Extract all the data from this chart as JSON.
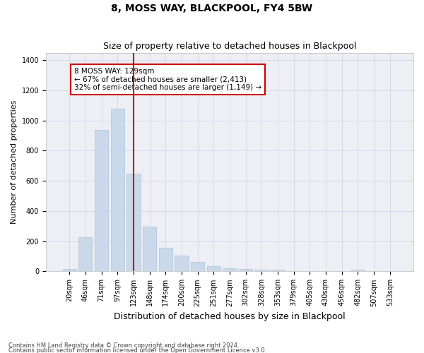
{
  "title": "8, MOSS WAY, BLACKPOOL, FY4 5BW",
  "subtitle": "Size of property relative to detached houses in Blackpool",
  "xlabel": "Distribution of detached houses by size in Blackpool",
  "ylabel": "Number of detached properties",
  "bar_labels": [
    "20sqm",
    "46sqm",
    "71sqm",
    "97sqm",
    "123sqm",
    "148sqm",
    "174sqm",
    "200sqm",
    "225sqm",
    "251sqm",
    "277sqm",
    "302sqm",
    "328sqm",
    "353sqm",
    "379sqm",
    "405sqm",
    "430sqm",
    "456sqm",
    "482sqm",
    "507sqm",
    "533sqm"
  ],
  "bar_values": [
    15,
    225,
    940,
    1080,
    650,
    295,
    155,
    105,
    65,
    35,
    22,
    18,
    13,
    12,
    0,
    0,
    0,
    0,
    13,
    0,
    0
  ],
  "bar_color": "#c9d9ea",
  "bar_edgecolor": "#aac4d8",
  "vline_color": "#cc0000",
  "annotation_text": "8 MOSS WAY: 129sqm\n← 67% of detached houses are smaller (2,413)\n32% of semi-detached houses are larger (1,149) →",
  "annotation_box_color": "white",
  "annotation_box_edgecolor": "#cc0000",
  "ylim": [
    0,
    1450
  ],
  "yticks": [
    0,
    200,
    400,
    600,
    800,
    1000,
    1200,
    1400
  ],
  "grid_color": "#d8d8e8",
  "bg_color": "#eeeef5",
  "footnote1": "Contains HM Land Registry data © Crown copyright and database right 2024.",
  "footnote2": "Contains public sector information licensed under the Open Government Licence v3.0.",
  "title_fontsize": 10,
  "subtitle_fontsize": 9,
  "xlabel_fontsize": 9,
  "ylabel_fontsize": 8,
  "tick_fontsize": 7,
  "annotation_fontsize": 7.5,
  "footnote_fontsize": 6
}
